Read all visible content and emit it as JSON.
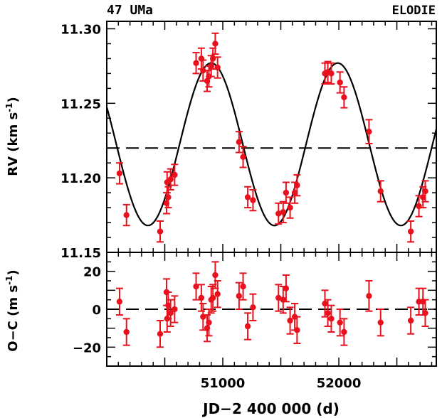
{
  "chart_data": [
    {
      "type": "scatter",
      "panel": "top",
      "title_left": "47 UMa",
      "title_right": "ELODIE",
      "ylabel": "RV (km s",
      "ylabel_sup": "-1",
      "ylabel_end": ")",
      "xlim": [
        50000,
        52840
      ],
      "ylim": [
        11.15,
        11.305
      ],
      "yticks": [
        11.15,
        11.2,
        11.25,
        11.3
      ],
      "ytick_labels": [
        "11.15",
        "11.20",
        "11.25",
        "11.30"
      ],
      "reference_line": 11.22,
      "fit_curve": {
        "center": 11.2225,
        "amplitude": 0.0545,
        "period": 1090,
        "phase_ref_x": 50900
      },
      "points": [
        {
          "x": 50110,
          "y": 11.203,
          "err": 0.007
        },
        {
          "x": 50170,
          "y": 11.175,
          "err": 0.007
        },
        {
          "x": 50460,
          "y": 11.164,
          "err": 0.007
        },
        {
          "x": 50515,
          "y": 11.183,
          "err": 0.007
        },
        {
          "x": 50520,
          "y": 11.197,
          "err": 0.007
        },
        {
          "x": 50530,
          "y": 11.187,
          "err": 0.007
        },
        {
          "x": 50550,
          "y": 11.199,
          "err": 0.007
        },
        {
          "x": 50585,
          "y": 11.202,
          "err": 0.007
        },
        {
          "x": 50770,
          "y": 11.277,
          "err": 0.007
        },
        {
          "x": 50815,
          "y": 11.28,
          "err": 0.007
        },
        {
          "x": 50830,
          "y": 11.272,
          "err": 0.007
        },
        {
          "x": 50865,
          "y": 11.265,
          "err": 0.007
        },
        {
          "x": 50880,
          "y": 11.268,
          "err": 0.007
        },
        {
          "x": 50900,
          "y": 11.275,
          "err": 0.007
        },
        {
          "x": 50915,
          "y": 11.28,
          "err": 0.007
        },
        {
          "x": 50935,
          "y": 11.29,
          "err": 0.007
        },
        {
          "x": 50955,
          "y": 11.274,
          "err": 0.007
        },
        {
          "x": 51140,
          "y": 11.224,
          "err": 0.007
        },
        {
          "x": 51175,
          "y": 11.214,
          "err": 0.007
        },
        {
          "x": 51215,
          "y": 11.187,
          "err": 0.007
        },
        {
          "x": 51260,
          "y": 11.185,
          "err": 0.007
        },
        {
          "x": 51480,
          "y": 11.176,
          "err": 0.007
        },
        {
          "x": 51520,
          "y": 11.177,
          "err": 0.007
        },
        {
          "x": 51545,
          "y": 11.19,
          "err": 0.007
        },
        {
          "x": 51580,
          "y": 11.18,
          "err": 0.007
        },
        {
          "x": 51620,
          "y": 11.19,
          "err": 0.007
        },
        {
          "x": 51640,
          "y": 11.195,
          "err": 0.007
        },
        {
          "x": 51880,
          "y": 11.27,
          "err": 0.007
        },
        {
          "x": 51905,
          "y": 11.271,
          "err": 0.007
        },
        {
          "x": 51935,
          "y": 11.27,
          "err": 0.007
        },
        {
          "x": 52010,
          "y": 11.264,
          "err": 0.007
        },
        {
          "x": 52045,
          "y": 11.254,
          "err": 0.007
        },
        {
          "x": 52260,
          "y": 11.231,
          "err": 0.008
        },
        {
          "x": 52360,
          "y": 11.191,
          "err": 0.007
        },
        {
          "x": 52620,
          "y": 11.164,
          "err": 0.007
        },
        {
          "x": 52690,
          "y": 11.181,
          "err": 0.007
        },
        {
          "x": 52725,
          "y": 11.187,
          "err": 0.007
        },
        {
          "x": 52745,
          "y": 11.191,
          "err": 0.007
        }
      ]
    },
    {
      "type": "scatter",
      "panel": "bottom",
      "xlabel": "JD−2 400 000 (d)",
      "ylabel": "O−C (m s",
      "ylabel_sup": "-1",
      "ylabel_end": ")",
      "xlim": [
        50000,
        52840
      ],
      "ylim": [
        -30,
        30
      ],
      "yticks": [
        -20,
        0,
        20
      ],
      "ytick_labels": [
        "−20",
        "0",
        "20"
      ],
      "xticks": [
        51000,
        52000
      ],
      "xtick_labels": [
        "51000",
        "52000"
      ],
      "reference_line": 0,
      "points": [
        {
          "x": 50110,
          "y": 4,
          "err": 7
        },
        {
          "x": 50170,
          "y": -12,
          "err": 7
        },
        {
          "x": 50460,
          "y": -13,
          "err": 7
        },
        {
          "x": 50515,
          "y": 9,
          "err": 7
        },
        {
          "x": 50520,
          "y": -5,
          "err": 7
        },
        {
          "x": 50530,
          "y": 2,
          "err": 7
        },
        {
          "x": 50550,
          "y": -2,
          "err": 7
        },
        {
          "x": 50585,
          "y": 0,
          "err": 7
        },
        {
          "x": 50770,
          "y": 12,
          "err": 7
        },
        {
          "x": 50815,
          "y": 6,
          "err": 7
        },
        {
          "x": 50830,
          "y": -4,
          "err": 7
        },
        {
          "x": 50865,
          "y": -10,
          "err": 7
        },
        {
          "x": 50880,
          "y": -7,
          "err": 7
        },
        {
          "x": 50900,
          "y": 5,
          "err": 7
        },
        {
          "x": 50915,
          "y": 6,
          "err": 7
        },
        {
          "x": 50935,
          "y": 18,
          "err": 7
        },
        {
          "x": 50955,
          "y": 8,
          "err": 7
        },
        {
          "x": 51140,
          "y": 7,
          "err": 7
        },
        {
          "x": 51175,
          "y": 12,
          "err": 7
        },
        {
          "x": 51215,
          "y": -9,
          "err": 7
        },
        {
          "x": 51260,
          "y": 1,
          "err": 7
        },
        {
          "x": 51480,
          "y": 6,
          "err": 7
        },
        {
          "x": 51520,
          "y": 5,
          "err": 7
        },
        {
          "x": 51545,
          "y": 11,
          "err": 7
        },
        {
          "x": 51580,
          "y": -6,
          "err": 7
        },
        {
          "x": 51620,
          "y": -4,
          "err": 7
        },
        {
          "x": 51640,
          "y": -11,
          "err": 7
        },
        {
          "x": 51880,
          "y": 3,
          "err": 7
        },
        {
          "x": 51905,
          "y": -2,
          "err": 7
        },
        {
          "x": 51935,
          "y": -5,
          "err": 7
        },
        {
          "x": 52010,
          "y": -7,
          "err": 7
        },
        {
          "x": 52045,
          "y": -12,
          "err": 7
        },
        {
          "x": 52260,
          "y": 7,
          "err": 8
        },
        {
          "x": 52360,
          "y": -7,
          "err": 7
        },
        {
          "x": 52620,
          "y": -6,
          "err": 7
        },
        {
          "x": 52690,
          "y": 4,
          "err": 7
        },
        {
          "x": 52725,
          "y": 4,
          "err": 7
        },
        {
          "x": 52745,
          "y": -2,
          "err": 7
        }
      ]
    }
  ],
  "colors": {
    "points": "#e8111d",
    "axes": "#000000",
    "curve": "#000000"
  }
}
